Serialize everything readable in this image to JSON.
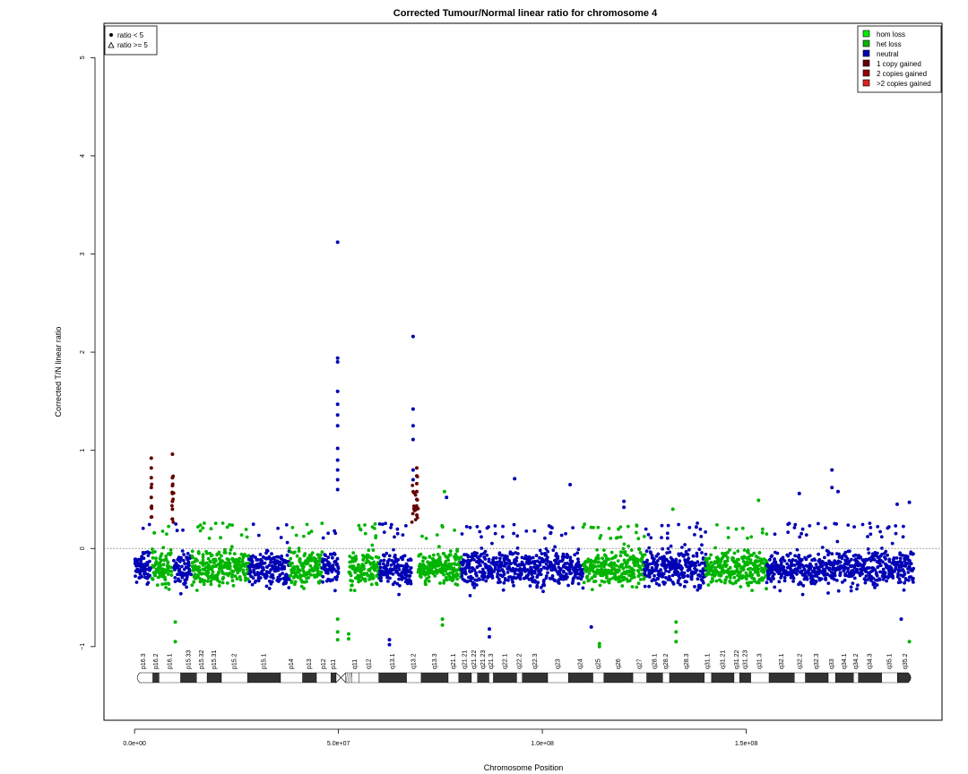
{
  "chart_data": {
    "type": "scatter",
    "title": "Corrected Tumour/Normal linear ratio for chromosome  4",
    "xlabel": "Chromosome Position",
    "ylabel": "Corrected T/N linear ratio",
    "xlim": [
      -7500000,
      198000000
    ],
    "ylim": [
      -1.75,
      5.35
    ],
    "x_ticks": [
      {
        "value": 0,
        "label": "0.0e+00"
      },
      {
        "value": 50000000,
        "label": "5.0e+07"
      },
      {
        "value": 100000000,
        "label": "1.0e+08"
      },
      {
        "value": 150000000,
        "label": "1.5e+08"
      }
    ],
    "y_ticks": [
      {
        "value": -1,
        "label": "−1"
      },
      {
        "value": 0,
        "label": "0"
      },
      {
        "value": 1,
        "label": "1"
      },
      {
        "value": 2,
        "label": "2"
      },
      {
        "value": 3,
        "label": "3"
      },
      {
        "value": 4,
        "label": "4"
      },
      {
        "value": 5,
        "label": "5"
      }
    ],
    "reference_line": 0,
    "marker_legend": {
      "position": "top-left",
      "entries": [
        {
          "label": "ratio < 5",
          "shape": "circle"
        },
        {
          "label": "ratio >= 5",
          "shape": "triangle"
        }
      ]
    },
    "color_legend": {
      "position": "top-right",
      "entries": [
        {
          "label": "hom loss",
          "color": "#00ee00"
        },
        {
          "label": "het loss",
          "color": "#00b400"
        },
        {
          "label": "neutral",
          "color": "#0000b4"
        },
        {
          "label": "1 copy gained",
          "color": "#640000"
        },
        {
          "label": "2 copies gained",
          "color": "#960000"
        },
        {
          "label": ">2 copies gained",
          "color": "#dd2222"
        }
      ]
    },
    "segments": [
      {
        "start": 0,
        "end": 4000000,
        "state": "neutral"
      },
      {
        "start": 4000000,
        "end": 4300000,
        "state": "1 copy gained"
      },
      {
        "start": 4300000,
        "end": 9000000,
        "state": "het loss"
      },
      {
        "start": 9000000,
        "end": 9600000,
        "state": "1 copy gained"
      },
      {
        "start": 9600000,
        "end": 14000000,
        "state": "neutral"
      },
      {
        "start": 14000000,
        "end": 28000000,
        "state": "het loss"
      },
      {
        "start": 28000000,
        "end": 38000000,
        "state": "neutral"
      },
      {
        "start": 38000000,
        "end": 46000000,
        "state": "het loss"
      },
      {
        "start": 46000000,
        "end": 50000000,
        "state": "neutral"
      },
      {
        "start": 52500000,
        "end": 60000000,
        "state": "het loss"
      },
      {
        "start": 60000000,
        "end": 68000000,
        "state": "neutral"
      },
      {
        "start": 68000000,
        "end": 69500000,
        "state": "1 copy gained"
      },
      {
        "start": 69500000,
        "end": 80000000,
        "state": "het loss"
      },
      {
        "start": 80000000,
        "end": 110000000,
        "state": "neutral"
      },
      {
        "start": 110000000,
        "end": 125000000,
        "state": "het loss"
      },
      {
        "start": 125000000,
        "end": 140000000,
        "state": "neutral"
      },
      {
        "start": 140000000,
        "end": 155000000,
        "state": "het loss"
      },
      {
        "start": 155000000,
        "end": 191000000,
        "state": "neutral"
      }
    ],
    "outliers": [
      {
        "x": 49800000,
        "y": 3.12,
        "state": "neutral"
      },
      {
        "x": 49800000,
        "y": 1.94,
        "state": "neutral"
      },
      {
        "x": 49800000,
        "y": 1.9,
        "state": "neutral"
      },
      {
        "x": 49800000,
        "y": 1.6,
        "state": "neutral"
      },
      {
        "x": 49800000,
        "y": 1.47,
        "state": "neutral"
      },
      {
        "x": 49800000,
        "y": 1.36,
        "state": "neutral"
      },
      {
        "x": 49800000,
        "y": 1.25,
        "state": "neutral"
      },
      {
        "x": 49800000,
        "y": 1.02,
        "state": "neutral"
      },
      {
        "x": 49800000,
        "y": 0.9,
        "state": "neutral"
      },
      {
        "x": 49800000,
        "y": 0.8,
        "state": "neutral"
      },
      {
        "x": 49800000,
        "y": 0.7,
        "state": "neutral"
      },
      {
        "x": 49800000,
        "y": 0.6,
        "state": "neutral"
      },
      {
        "x": 49800000,
        "y": -0.72,
        "state": "het loss"
      },
      {
        "x": 49800000,
        "y": -0.85,
        "state": "het loss"
      },
      {
        "x": 49800000,
        "y": -0.93,
        "state": "het loss"
      },
      {
        "x": 68300000,
        "y": 2.16,
        "state": "neutral"
      },
      {
        "x": 68300000,
        "y": 1.42,
        "state": "neutral"
      },
      {
        "x": 68300000,
        "y": 1.25,
        "state": "neutral"
      },
      {
        "x": 68300000,
        "y": 1.11,
        "state": "neutral"
      },
      {
        "x": 68300000,
        "y": 0.8,
        "state": "neutral"
      },
      {
        "x": 68300000,
        "y": 0.7,
        "state": "neutral"
      },
      {
        "x": 69200000,
        "y": 0.82,
        "state": "1 copy gained"
      },
      {
        "x": 69200000,
        "y": 0.74,
        "state": "1 copy gained"
      },
      {
        "x": 69200000,
        "y": 0.66,
        "state": "1 copy gained"
      },
      {
        "x": 69200000,
        "y": 0.58,
        "state": "1 copy gained"
      },
      {
        "x": 69200000,
        "y": 0.5,
        "state": "1 copy gained"
      },
      {
        "x": 69200000,
        "y": 0.42,
        "state": "1 copy gained"
      },
      {
        "x": 69200000,
        "y": 0.34,
        "state": "1 copy gained"
      },
      {
        "x": 4100000,
        "y": 0.92,
        "state": "1 copy gained"
      },
      {
        "x": 4100000,
        "y": 0.82,
        "state": "1 copy gained"
      },
      {
        "x": 4100000,
        "y": 0.72,
        "state": "1 copy gained"
      },
      {
        "x": 4100000,
        "y": 0.62,
        "state": "1 copy gained"
      },
      {
        "x": 4100000,
        "y": 0.52,
        "state": "1 copy gained"
      },
      {
        "x": 4100000,
        "y": 0.42,
        "state": "1 copy gained"
      },
      {
        "x": 4100000,
        "y": 0.32,
        "state": "1 copy gained"
      },
      {
        "x": 9300000,
        "y": 0.96,
        "state": "1 copy gained"
      },
      {
        "x": 9300000,
        "y": 0.72,
        "state": "1 copy gained"
      },
      {
        "x": 9300000,
        "y": 0.64,
        "state": "1 copy gained"
      },
      {
        "x": 9300000,
        "y": 0.56,
        "state": "1 copy gained"
      },
      {
        "x": 9300000,
        "y": 0.48,
        "state": "1 copy gained"
      },
      {
        "x": 9300000,
        "y": 0.4,
        "state": "1 copy gained"
      },
      {
        "x": 9300000,
        "y": 0.3,
        "state": "1 copy gained"
      },
      {
        "x": 93200000,
        "y": 0.71,
        "state": "neutral"
      },
      {
        "x": 106800000,
        "y": 0.65,
        "state": "neutral"
      },
      {
        "x": 76000000,
        "y": 0.58,
        "state": "het loss"
      },
      {
        "x": 76500000,
        "y": 0.52,
        "state": "neutral"
      },
      {
        "x": 120000000,
        "y": 0.48,
        "state": "neutral"
      },
      {
        "x": 120000000,
        "y": 0.42,
        "state": "neutral"
      },
      {
        "x": 153000000,
        "y": 0.49,
        "state": "het loss"
      },
      {
        "x": 163000000,
        "y": 0.56,
        "state": "neutral"
      },
      {
        "x": 171000000,
        "y": 0.8,
        "state": "neutral"
      },
      {
        "x": 171000000,
        "y": 0.62,
        "state": "neutral"
      },
      {
        "x": 172500000,
        "y": 0.58,
        "state": "neutral"
      },
      {
        "x": 187000000,
        "y": 0.45,
        "state": "neutral"
      },
      {
        "x": 190000000,
        "y": 0.47,
        "state": "neutral"
      },
      {
        "x": 10000000,
        "y": -0.75,
        "state": "het loss"
      },
      {
        "x": 10000000,
        "y": -0.95,
        "state": "het loss"
      },
      {
        "x": 52500000,
        "y": -0.87,
        "state": "het loss"
      },
      {
        "x": 52500000,
        "y": -0.92,
        "state": "het loss"
      },
      {
        "x": 62500000,
        "y": -0.93,
        "state": "neutral"
      },
      {
        "x": 62500000,
        "y": -0.98,
        "state": "neutral"
      },
      {
        "x": 75500000,
        "y": -0.72,
        "state": "het loss"
      },
      {
        "x": 75500000,
        "y": -0.78,
        "state": "het loss"
      },
      {
        "x": 87000000,
        "y": -0.82,
        "state": "neutral"
      },
      {
        "x": 87000000,
        "y": -0.9,
        "state": "neutral"
      },
      {
        "x": 112000000,
        "y": -0.8,
        "state": "neutral"
      },
      {
        "x": 114000000,
        "y": -0.97,
        "state": "het loss"
      },
      {
        "x": 114000000,
        "y": -1.0,
        "state": "het loss"
      },
      {
        "x": 132800000,
        "y": -0.75,
        "state": "het loss"
      },
      {
        "x": 132800000,
        "y": -0.85,
        "state": "het loss"
      },
      {
        "x": 132800000,
        "y": -0.95,
        "state": "het loss"
      },
      {
        "x": 132000000,
        "y": 0.4,
        "state": "het loss"
      },
      {
        "x": 188000000,
        "y": -0.72,
        "state": "neutral"
      },
      {
        "x": 190000000,
        "y": -0.95,
        "state": "het loss"
      }
    ],
    "ideogram": {
      "centromere": [
        49400000,
        51800000
      ],
      "stalk": [
        51800000,
        53200000
      ],
      "bands": [
        {
          "name": "p16.3",
          "start": 0,
          "end": 4500000,
          "stain": "gneg"
        },
        {
          "name": "p16.2",
          "start": 4500000,
          "end": 6000000,
          "stain": "gpos"
        },
        {
          "name": "p16.1",
          "start": 6000000,
          "end": 11300000,
          "stain": "gneg"
        },
        {
          "name": "p15.33",
          "start": 11300000,
          "end": 15200000,
          "stain": "gpos"
        },
        {
          "name": "p15.32",
          "start": 15200000,
          "end": 17800000,
          "stain": "gneg"
        },
        {
          "name": "p15.31",
          "start": 17800000,
          "end": 21300000,
          "stain": "gpos"
        },
        {
          "name": "p15.2",
          "start": 21300000,
          "end": 27700000,
          "stain": "gneg"
        },
        {
          "name": "p15.1",
          "start": 27700000,
          "end": 35800000,
          "stain": "gpos"
        },
        {
          "name": "p14",
          "start": 35800000,
          "end": 41200000,
          "stain": "gneg"
        },
        {
          "name": "p13",
          "start": 41200000,
          "end": 44600000,
          "stain": "gpos"
        },
        {
          "name": "p12",
          "start": 44600000,
          "end": 48200000,
          "stain": "gneg"
        },
        {
          "name": "p11",
          "start": 48200000,
          "end": 49400000,
          "stain": "gpos"
        },
        {
          "name": "q11",
          "start": 53200000,
          "end": 55000000,
          "stain": "gneg"
        },
        {
          "name": "q12",
          "start": 55000000,
          "end": 59900000,
          "stain": "gneg"
        },
        {
          "name": "q13.1",
          "start": 59900000,
          "end": 66700000,
          "stain": "gpos"
        },
        {
          "name": "q13.2",
          "start": 66700000,
          "end": 70300000,
          "stain": "gneg"
        },
        {
          "name": "q13.3",
          "start": 70300000,
          "end": 76900000,
          "stain": "gpos"
        },
        {
          "name": "q21.1",
          "start": 76900000,
          "end": 79500000,
          "stain": "gneg"
        },
        {
          "name": "q21.21",
          "start": 79500000,
          "end": 82600000,
          "stain": "gpos"
        },
        {
          "name": "q21.22",
          "start": 82600000,
          "end": 84100000,
          "stain": "gneg"
        },
        {
          "name": "q21.23",
          "start": 84100000,
          "end": 86900000,
          "stain": "gpos"
        },
        {
          "name": "q21.3",
          "start": 86900000,
          "end": 88000000,
          "stain": "gneg"
        },
        {
          "name": "q22.1",
          "start": 88000000,
          "end": 93700000,
          "stain": "gpos"
        },
        {
          "name": "q22.2",
          "start": 93700000,
          "end": 95100000,
          "stain": "gneg"
        },
        {
          "name": "q22.3",
          "start": 95100000,
          "end": 101300000,
          "stain": "gpos"
        },
        {
          "name": "q23",
          "start": 101300000,
          "end": 106400000,
          "stain": "gneg"
        },
        {
          "name": "q24",
          "start": 106400000,
          "end": 112400000,
          "stain": "gpos"
        },
        {
          "name": "q25",
          "start": 112400000,
          "end": 115100000,
          "stain": "gneg"
        },
        {
          "name": "q26",
          "start": 115100000,
          "end": 122200000,
          "stain": "gpos"
        },
        {
          "name": "q27",
          "start": 122200000,
          "end": 125600000,
          "stain": "gneg"
        },
        {
          "name": "q28.1",
          "start": 125600000,
          "end": 129500000,
          "stain": "gpos"
        },
        {
          "name": "q28.2",
          "start": 129500000,
          "end": 131200000,
          "stain": "gneg"
        },
        {
          "name": "q28.3",
          "start": 131200000,
          "end": 139700000,
          "stain": "gpos"
        },
        {
          "name": "q31.1",
          "start": 139700000,
          "end": 141500000,
          "stain": "gneg"
        },
        {
          "name": "q31.21",
          "start": 141500000,
          "end": 147000000,
          "stain": "gpos"
        },
        {
          "name": "q31.22",
          "start": 147000000,
          "end": 148400000,
          "stain": "gneg"
        },
        {
          "name": "q31.23",
          "start": 148400000,
          "end": 151100000,
          "stain": "gpos"
        },
        {
          "name": "q31.3",
          "start": 151100000,
          "end": 155600000,
          "stain": "gneg"
        },
        {
          "name": "q32.1",
          "start": 155600000,
          "end": 161800000,
          "stain": "gpos"
        },
        {
          "name": "q32.2",
          "start": 161800000,
          "end": 164500000,
          "stain": "gneg"
        },
        {
          "name": "q32.3",
          "start": 164500000,
          "end": 170100000,
          "stain": "gpos"
        },
        {
          "name": "q33",
          "start": 170100000,
          "end": 171900000,
          "stain": "gneg"
        },
        {
          "name": "q34.1",
          "start": 171900000,
          "end": 176300000,
          "stain": "gpos"
        },
        {
          "name": "q34.2",
          "start": 176300000,
          "end": 177500000,
          "stain": "gneg"
        },
        {
          "name": "q34.3",
          "start": 177500000,
          "end": 183200000,
          "stain": "gpos"
        },
        {
          "name": "q35.1",
          "start": 183200000,
          "end": 187100000,
          "stain": "gneg"
        },
        {
          "name": "q35.2",
          "start": 187100000,
          "end": 191000000,
          "stain": "gpos"
        }
      ]
    }
  }
}
